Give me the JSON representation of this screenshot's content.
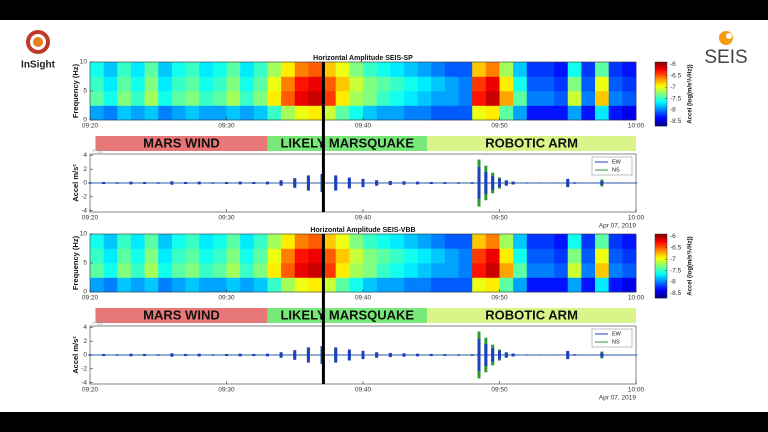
{
  "logos": {
    "left": "InSight",
    "right": "SEIS"
  },
  "chart_data": [
    {
      "type": "heatmap",
      "title": "Horizontal Amplitude SEIS-SP",
      "ylabel": "Frequency (Hz)",
      "x": [
        20.5,
        21.5,
        22.5,
        23.5,
        24.5,
        25.5,
        26.5,
        27.5,
        28.5,
        29.5,
        30.5,
        31.5,
        32.5,
        33.5,
        34.5,
        35.5,
        36.5,
        37.5,
        38.5,
        39.5,
        40.5,
        41.5,
        42.5,
        43.5,
        44.5,
        45.5,
        46.5,
        47.5,
        48.5,
        49.5,
        50.5,
        51.5,
        52.5,
        53.5,
        54.5,
        55.5,
        56.5,
        57.5,
        58.5,
        59.5
      ],
      "y": [
        1.25,
        3.75,
        6.25,
        8.75
      ],
      "z": [
        [
          -7.9,
          -8.0,
          -7.8,
          -7.9,
          -7.8,
          -8.0,
          -7.9,
          -7.8,
          -7.9,
          -7.9,
          -7.8,
          -7.9,
          -7.8,
          -7.5,
          -7.2,
          -7.0,
          -6.9,
          -7.1,
          -7.4,
          -7.6,
          -7.8,
          -7.9,
          -7.9,
          -8.0,
          -8.0,
          -8.1,
          -8.1,
          -8.1,
          -7.0,
          -6.9,
          -7.4,
          -7.9,
          -8.3,
          -8.3,
          -8.3,
          -7.9,
          -8.3,
          -7.7,
          -8.3,
          -8.4
        ],
        [
          -7.4,
          -7.6,
          -7.3,
          -7.5,
          -7.2,
          -7.6,
          -7.4,
          -7.3,
          -7.5,
          -7.4,
          -7.2,
          -7.5,
          -7.3,
          -6.9,
          -6.5,
          -6.2,
          -6.1,
          -6.4,
          -6.9,
          -7.2,
          -7.3,
          -7.5,
          -7.6,
          -7.7,
          -7.8,
          -7.9,
          -7.9,
          -8.0,
          -6.3,
          -6.1,
          -6.7,
          -7.4,
          -8.0,
          -8.0,
          -8.1,
          -7.1,
          -8.0,
          -6.8,
          -8.0,
          -8.1
        ],
        [
          -7.5,
          -7.7,
          -7.4,
          -7.6,
          -7.3,
          -7.7,
          -7.5,
          -7.4,
          -7.6,
          -7.5,
          -7.3,
          -7.6,
          -7.4,
          -7.0,
          -6.6,
          -6.3,
          -6.2,
          -6.5,
          -6.8,
          -7.1,
          -7.3,
          -7.4,
          -7.5,
          -7.6,
          -7.7,
          -7.8,
          -7.9,
          -8.0,
          -6.4,
          -6.2,
          -6.9,
          -7.6,
          -8.1,
          -8.1,
          -8.2,
          -7.3,
          -8.1,
          -7.0,
          -8.1,
          -8.2
        ],
        [
          -7.6,
          -7.8,
          -7.5,
          -7.7,
          -7.4,
          -7.8,
          -7.6,
          -7.5,
          -7.7,
          -7.6,
          -7.4,
          -7.7,
          -7.5,
          -7.2,
          -6.9,
          -6.6,
          -6.5,
          -6.8,
          -7.0,
          -7.3,
          -7.5,
          -7.6,
          -7.7,
          -7.8,
          -7.9,
          -8.0,
          -8.1,
          -8.1,
          -6.8,
          -6.6,
          -7.2,
          -7.8,
          -8.2,
          -8.2,
          -8.3,
          -7.6,
          -8.2,
          -7.4,
          -8.2,
          -8.3
        ]
      ],
      "xlim": [
        20,
        60
      ],
      "ylim": [
        0,
        10
      ],
      "xticks": [
        {
          "value": 20,
          "label": "09:20"
        },
        {
          "value": 30,
          "label": "09:30"
        },
        {
          "value": 40,
          "label": "09:40"
        },
        {
          "value": 50,
          "label": "09:50"
        },
        {
          "value": 60,
          "label": "10:00"
        }
      ],
      "yticks": [
        0,
        5,
        10
      ],
      "clim": [
        -8.7,
        -5.9
      ],
      "cticks": [
        -6,
        -6.5,
        -7,
        -7.5,
        -8,
        -8.5
      ],
      "colorbar_label": "Accel (log(m/s²/√Hz))",
      "marker_x": 37.1
    },
    {
      "type": "envelope",
      "ylabel": "Accel m/s²",
      "y_scale_label": "× 10⁻⁸",
      "x": [
        20,
        21,
        22,
        23,
        24,
        25,
        26,
        27,
        28,
        29,
        30,
        31,
        32,
        33,
        34,
        35,
        36,
        37,
        38,
        39,
        40,
        41,
        42,
        43,
        44,
        45,
        46,
        47,
        48,
        48.5,
        49,
        49.5,
        50,
        50.5,
        51,
        52,
        53,
        54,
        55,
        55.5,
        56,
        57,
        57.5,
        58,
        59,
        60
      ],
      "series": [
        {
          "name": "NS",
          "color": "#2e9a2e",
          "values": [
            0.08,
            0.12,
            0.08,
            0.15,
            0.1,
            0.08,
            0.2,
            0.12,
            0.15,
            0.08,
            0.12,
            0.15,
            0.12,
            0.15,
            0.3,
            0.5,
            0.8,
            1.0,
            0.9,
            0.6,
            0.45,
            0.3,
            0.22,
            0.18,
            0.15,
            0.12,
            0.1,
            0.08,
            0.1,
            3.4,
            2.5,
            1.5,
            0.8,
            0.4,
            0.2,
            0.06,
            0.05,
            0.04,
            0.4,
            0.08,
            0.04,
            0.04,
            0.5,
            0.06,
            0.03,
            0.03
          ]
        },
        {
          "name": "EW",
          "color": "#1f3fbf",
          "values": [
            0.1,
            0.15,
            0.1,
            0.2,
            0.15,
            0.1,
            0.25,
            0.15,
            0.2,
            0.1,
            0.15,
            0.2,
            0.15,
            0.2,
            0.4,
            0.7,
            1.1,
            1.3,
            1.1,
            0.8,
            0.6,
            0.4,
            0.3,
            0.25,
            0.2,
            0.15,
            0.12,
            0.1,
            0.1,
            2.3,
            1.6,
            1.0,
            0.6,
            0.35,
            0.2,
            0.08,
            0.06,
            0.05,
            0.6,
            0.1,
            0.05,
            0.05,
            0.3,
            0.05,
            0.04,
            0.04
          ]
        }
      ],
      "xlim": [
        20,
        60
      ],
      "ylim": [
        -4.2,
        4.2
      ],
      "yticks": [
        -4,
        -2,
        0,
        2,
        4
      ],
      "xticks": [
        {
          "value": 20,
          "label": "09:20"
        },
        {
          "value": 30,
          "label": "09:30"
        },
        {
          "value": 40,
          "label": "09:40"
        },
        {
          "value": 50,
          "label": "09:50"
        },
        {
          "value": 60,
          "label": "10:00"
        }
      ],
      "bands": [
        {
          "label": "MARS WIND",
          "start": 20.4,
          "end": 33.0,
          "color": "#e87878"
        },
        {
          "label": "LIKELY MARSQUAKE",
          "start": 33.0,
          "end": 44.7,
          "color": "#78e878"
        },
        {
          "label": "ROBOTIC ARM",
          "start": 44.7,
          "end": 60,
          "color": "#d9f58a"
        }
      ],
      "date_label": "Apr 07, 2019",
      "marker_x": 37.1
    },
    {
      "type": "heatmap",
      "title": "Horizontal Amplitude SEIS-VBB",
      "ylabel": "Frequency (Hz)",
      "x": [
        20.5,
        21.5,
        22.5,
        23.5,
        24.5,
        25.5,
        26.5,
        27.5,
        28.5,
        29.5,
        30.5,
        31.5,
        32.5,
        33.5,
        34.5,
        35.5,
        36.5,
        37.5,
        38.5,
        39.5,
        40.5,
        41.5,
        42.5,
        43.5,
        44.5,
        45.5,
        46.5,
        47.5,
        48.5,
        49.5,
        50.5,
        51.5,
        52.5,
        53.5,
        54.5,
        55.5,
        56.5,
        57.5,
        58.5,
        59.5
      ],
      "y": [
        1.25,
        3.75,
        6.25,
        8.75
      ],
      "z": [
        [
          -7.9,
          -8.0,
          -7.8,
          -7.9,
          -7.8,
          -8.0,
          -7.9,
          -7.8,
          -7.9,
          -7.9,
          -7.8,
          -7.9,
          -7.8,
          -7.5,
          -7.2,
          -7.0,
          -6.9,
          -7.1,
          -7.4,
          -7.6,
          -7.8,
          -7.9,
          -7.9,
          -8.0,
          -8.0,
          -8.1,
          -8.1,
          -8.1,
          -7.0,
          -6.9,
          -7.4,
          -7.9,
          -8.3,
          -8.3,
          -8.3,
          -7.9,
          -8.3,
          -7.7,
          -8.3,
          -8.4
        ],
        [
          -7.4,
          -7.6,
          -7.3,
          -7.5,
          -7.2,
          -7.6,
          -7.4,
          -7.3,
          -7.5,
          -7.4,
          -7.2,
          -7.5,
          -7.3,
          -6.9,
          -6.5,
          -6.2,
          -6.1,
          -6.4,
          -6.9,
          -7.2,
          -7.3,
          -7.5,
          -7.6,
          -7.7,
          -7.8,
          -7.9,
          -7.9,
          -8.0,
          -6.3,
          -6.1,
          -6.7,
          -7.4,
          -8.0,
          -8.0,
          -8.1,
          -7.1,
          -8.0,
          -6.8,
          -8.0,
          -8.1
        ],
        [
          -7.5,
          -7.7,
          -7.4,
          -7.6,
          -7.3,
          -7.7,
          -7.5,
          -7.4,
          -7.6,
          -7.5,
          -7.3,
          -7.6,
          -7.4,
          -7.0,
          -6.6,
          -6.3,
          -6.2,
          -6.5,
          -6.8,
          -7.1,
          -7.3,
          -7.4,
          -7.5,
          -7.6,
          -7.7,
          -7.8,
          -7.9,
          -8.0,
          -6.4,
          -6.2,
          -6.9,
          -7.6,
          -8.1,
          -8.1,
          -8.2,
          -7.3,
          -8.1,
          -7.0,
          -8.1,
          -8.2
        ],
        [
          -7.6,
          -7.8,
          -7.5,
          -7.7,
          -7.4,
          -7.8,
          -7.6,
          -7.5,
          -7.7,
          -7.6,
          -7.4,
          -7.7,
          -7.5,
          -7.2,
          -6.9,
          -6.6,
          -6.5,
          -6.8,
          -7.0,
          -7.3,
          -7.5,
          -7.6,
          -7.7,
          -7.8,
          -7.9,
          -8.0,
          -8.1,
          -8.1,
          -6.8,
          -6.6,
          -7.2,
          -7.8,
          -8.2,
          -8.2,
          -8.3,
          -7.6,
          -8.2,
          -7.4,
          -8.2,
          -8.3
        ]
      ],
      "xlim": [
        20,
        60
      ],
      "ylim": [
        0,
        10
      ],
      "xticks": [
        {
          "value": 20,
          "label": "09:20"
        },
        {
          "value": 30,
          "label": "09:30"
        },
        {
          "value": 40,
          "label": "09:40"
        },
        {
          "value": 50,
          "label": "09:50"
        },
        {
          "value": 60,
          "label": "10:00"
        }
      ],
      "yticks": [
        0,
        5,
        10
      ],
      "clim": [
        -8.7,
        -5.9
      ],
      "cticks": [
        -6,
        -6.5,
        -7,
        -7.5,
        -8,
        -8.5
      ],
      "colorbar_label": "Accel (log(m/s²/√Hz))",
      "marker_x": 37.1
    },
    {
      "type": "envelope",
      "ylabel": "Accel m/s²",
      "y_scale_label": "× 10⁻⁸",
      "x": [
        20,
        21,
        22,
        23,
        24,
        25,
        26,
        27,
        28,
        29,
        30,
        31,
        32,
        33,
        34,
        35,
        36,
        37,
        38,
        39,
        40,
        41,
        42,
        43,
        44,
        45,
        46,
        47,
        48,
        48.5,
        49,
        49.5,
        50,
        50.5,
        51,
        52,
        53,
        54,
        55,
        55.5,
        56,
        57,
        57.5,
        58,
        59,
        60
      ],
      "series": [
        {
          "name": "NS",
          "color": "#2e9a2e",
          "values": [
            0.08,
            0.12,
            0.08,
            0.15,
            0.1,
            0.08,
            0.2,
            0.12,
            0.15,
            0.08,
            0.12,
            0.15,
            0.12,
            0.15,
            0.3,
            0.5,
            0.8,
            1.0,
            0.9,
            0.6,
            0.45,
            0.3,
            0.22,
            0.18,
            0.15,
            0.12,
            0.1,
            0.08,
            0.1,
            3.4,
            2.5,
            1.5,
            0.8,
            0.4,
            0.2,
            0.06,
            0.05,
            0.04,
            0.4,
            0.08,
            0.04,
            0.04,
            0.5,
            0.06,
            0.03,
            0.03
          ]
        },
        {
          "name": "EW",
          "color": "#1f3fbf",
          "values": [
            0.1,
            0.15,
            0.1,
            0.2,
            0.15,
            0.1,
            0.25,
            0.15,
            0.2,
            0.1,
            0.15,
            0.2,
            0.15,
            0.2,
            0.4,
            0.7,
            1.1,
            1.3,
            1.1,
            0.8,
            0.6,
            0.4,
            0.3,
            0.25,
            0.2,
            0.15,
            0.12,
            0.1,
            0.1,
            2.3,
            1.6,
            1.0,
            0.6,
            0.35,
            0.2,
            0.08,
            0.06,
            0.05,
            0.6,
            0.1,
            0.05,
            0.05,
            0.3,
            0.05,
            0.04,
            0.04
          ]
        }
      ],
      "xlim": [
        20,
        60
      ],
      "ylim": [
        -4.2,
        4.2
      ],
      "yticks": [
        -4,
        -2,
        0,
        2,
        4
      ],
      "xticks": [
        {
          "value": 20,
          "label": "09:20"
        },
        {
          "value": 30,
          "label": "09:30"
        },
        {
          "value": 40,
          "label": "09:40"
        },
        {
          "value": 50,
          "label": "09:50"
        },
        {
          "value": 60,
          "label": "10:00"
        }
      ],
      "bands": [
        {
          "label": "MARS WIND",
          "start": 20.4,
          "end": 33.0,
          "color": "#e87878"
        },
        {
          "label": "LIKELY MARSQUAKE",
          "start": 33.0,
          "end": 44.7,
          "color": "#78e878"
        },
        {
          "label": "ROBOTIC ARM",
          "start": 44.7,
          "end": 60,
          "color": "#d9f58a"
        }
      ],
      "date_label": "Apr 07, 2019",
      "marker_x": 37.1
    }
  ]
}
